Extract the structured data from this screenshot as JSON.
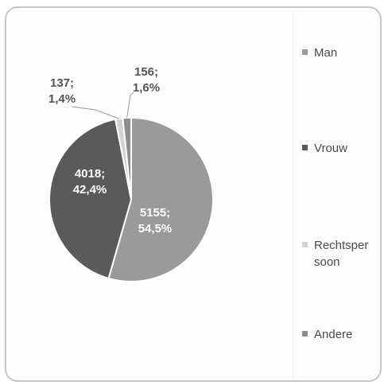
{
  "chart_data": {
    "type": "pie",
    "title": "",
    "series": [
      {
        "name": "Man",
        "value": 5155,
        "percent": "54,5%",
        "color": "#9a9a9a"
      },
      {
        "name": "Vrouw",
        "value": 4018,
        "percent": "42,4%",
        "color": "#5a5a5a"
      },
      {
        "name": "Rechtspersoon",
        "value": 137,
        "percent": "1,4%",
        "color": "#d2d2d2"
      },
      {
        "name": "Andere",
        "value": 156,
        "percent": "1,6%",
        "color": "#8c8c8c"
      }
    ],
    "data_labels": [
      {
        "value": "5155;",
        "percent": "54,5%"
      },
      {
        "value": "4018;",
        "percent": "42,4%"
      },
      {
        "value": "137;",
        "percent": "1,4%"
      },
      {
        "value": "156;",
        "percent": "1,6%"
      }
    ],
    "legend": {
      "position": "right",
      "items": [
        "Man",
        "Vrouw",
        "Rechtsper soon",
        "Andere"
      ]
    }
  }
}
